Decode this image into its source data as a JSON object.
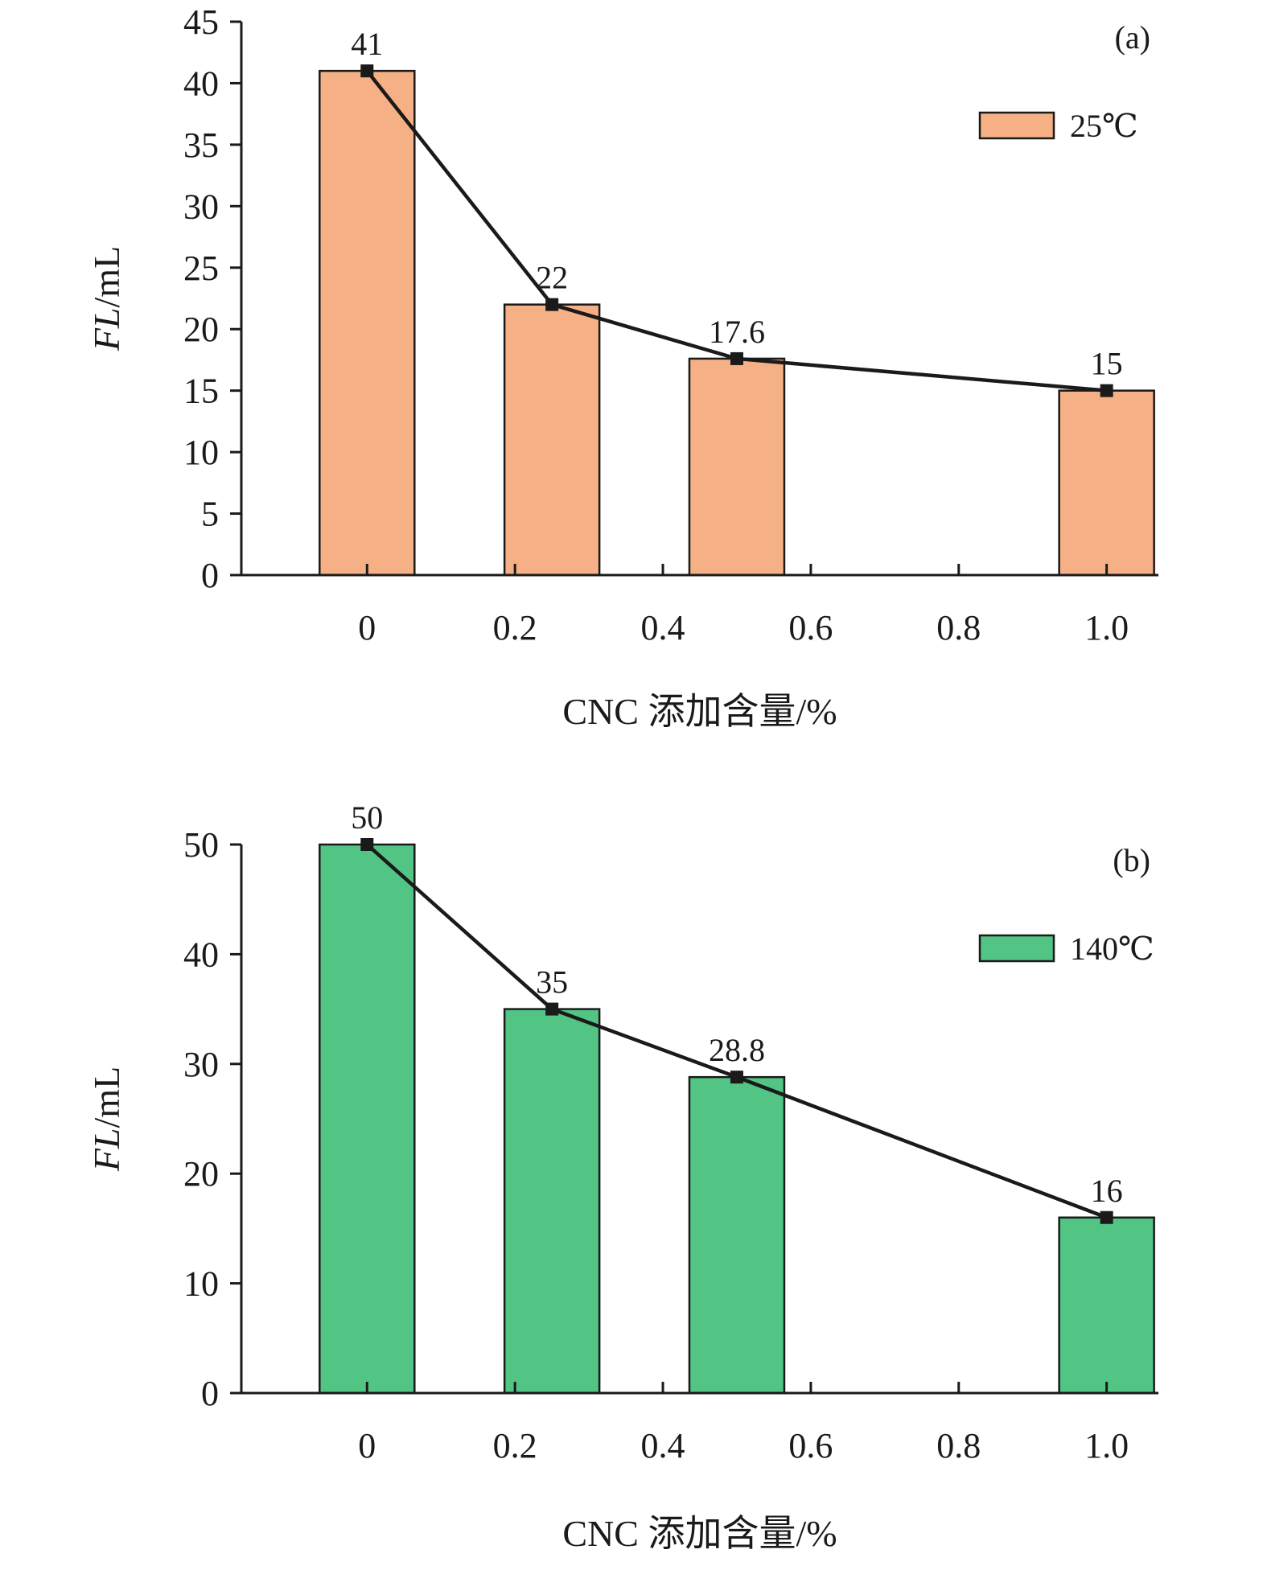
{
  "chart_data": [
    {
      "type": "bar",
      "panel_label": "(a)",
      "categories": [
        "0",
        "0.25",
        "0.5",
        "1.0"
      ],
      "x_ticks": [
        "0",
        "0.2",
        "0.4",
        "0.6",
        "0.8",
        "1.0"
      ],
      "x": [
        0,
        0.25,
        0.5,
        1.0
      ],
      "xlim": [
        -0.17,
        1.07
      ],
      "series": [
        {
          "name": "25℃",
          "values": [
            41,
            22,
            17.6,
            15
          ],
          "color": "#f5b085"
        }
      ],
      "data_labels": [
        "41",
        "22",
        "17.6",
        "15"
      ],
      "line_overlay": true,
      "xlabel": "CNC 添加含量/%",
      "ylabel_italic": "FL",
      "ylabel_unit": "/mL",
      "ylim": [
        0,
        45
      ],
      "y_ticks": [
        "0",
        "5",
        "10",
        "15",
        "20",
        "25",
        "30",
        "35",
        "40",
        "45"
      ],
      "legend": "top-right",
      "grid": false
    },
    {
      "type": "bar",
      "panel_label": "(b)",
      "categories": [
        "0",
        "0.25",
        "0.5",
        "1.0"
      ],
      "x_ticks": [
        "0",
        "0.2",
        "0.4",
        "0.6",
        "0.8",
        "1.0"
      ],
      "x": [
        0,
        0.25,
        0.5,
        1.0
      ],
      "xlim": [
        -0.17,
        1.07
      ],
      "series": [
        {
          "name": "140℃",
          "values": [
            50,
            35,
            28.8,
            16
          ],
          "color": "#52c484"
        }
      ],
      "data_labels": [
        "50",
        "35",
        "28.8",
        "16"
      ],
      "line_overlay": true,
      "xlabel": "CNC 添加含量/%",
      "ylabel_italic": "FL",
      "ylabel_unit": "/mL",
      "ylim": [
        0,
        50
      ],
      "y_ticks": [
        "0",
        "10",
        "20",
        "30",
        "40",
        "50"
      ],
      "legend": "top-right",
      "grid": false
    }
  ],
  "colors": {
    "axis": "#1a1a1a",
    "line": "#1a1a1a"
  }
}
